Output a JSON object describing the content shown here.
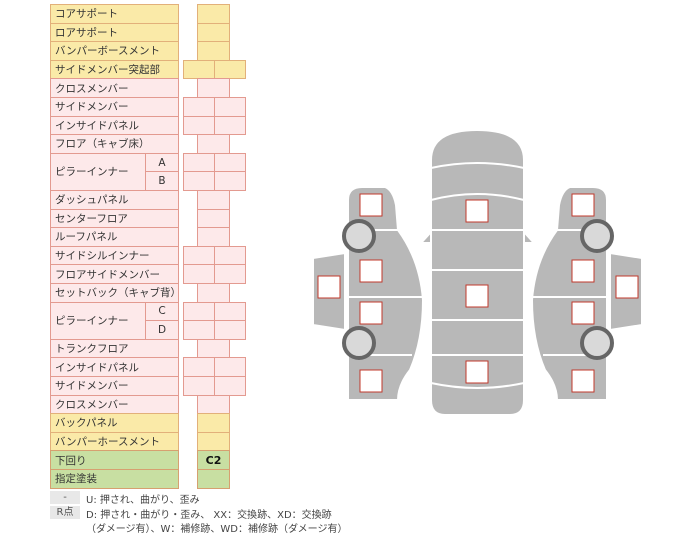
{
  "table": {
    "rows": [
      {
        "label": "コアサポート",
        "color": "yellow",
        "cells": 1
      },
      {
        "label": "ロアサポート",
        "color": "yellow",
        "cells": 1
      },
      {
        "label": "バンパーボースメント",
        "color": "yellow",
        "cells": 1
      },
      {
        "label": "サイドメンバー突起部",
        "color": "yellow",
        "cells": 2
      },
      {
        "label": "クロスメンバー",
        "color": "pink",
        "cells": 1
      },
      {
        "label": "サイドメンバー",
        "color": "pink",
        "cells": 2
      },
      {
        "label": "インサイドパネル",
        "color": "pink",
        "cells": 2
      },
      {
        "label": "フロア（キャブ床）",
        "color": "pink",
        "cells": 1
      },
      {
        "label": "ピラーインナー",
        "sub": "A",
        "color": "pink",
        "cells": 2
      },
      {
        "label": "",
        "sub": "B",
        "color": "pink",
        "cells": 2
      },
      {
        "label": "ダッシュパネル",
        "color": "pink",
        "cells": 1
      },
      {
        "label": "センターフロア",
        "color": "pink",
        "cells": 1
      },
      {
        "label": "ルーフパネル",
        "color": "pink",
        "cells": 1
      },
      {
        "label": "サイドシルインナー",
        "color": "pink",
        "cells": 2
      },
      {
        "label": "フロアサイドメンバー",
        "color": "pink",
        "cells": 2
      },
      {
        "label": "セットバック（キャブ背）",
        "color": "pink",
        "cells": 1
      },
      {
        "label": "ピラーインナー",
        "sub": "C",
        "color": "pink",
        "cells": 2
      },
      {
        "label": "",
        "sub": "D",
        "color": "pink",
        "cells": 2
      },
      {
        "label": "トランクフロア",
        "color": "pink",
        "cells": 1
      },
      {
        "label": "インサイドパネル",
        "color": "pink",
        "cells": 2
      },
      {
        "label": "サイドメンバー",
        "color": "pink",
        "cells": 2
      },
      {
        "label": "クロスメンバー",
        "color": "pink",
        "cells": 1
      },
      {
        "label": "バックパネル",
        "color": "yellow",
        "cells": 1
      },
      {
        "label": "バンパーホースメント",
        "color": "yellow",
        "cells": 1
      },
      {
        "label": "下回り",
        "color": "green",
        "cells": 1,
        "value": "C2"
      },
      {
        "label": "指定塗装",
        "color": "green",
        "cells": 1
      }
    ]
  },
  "legend": {
    "rows": [
      {
        "key": "-",
        "text": "U: 押され、曲がり、歪み"
      },
      {
        "key": "R点",
        "text": "D: 押され・曲がり・歪み、 XX：交換跡、XD：交換跡"
      },
      {
        "key": "",
        "text": "（ダメージ有）、W：補修跡、WD：補修跡（ダメージ有）"
      }
    ]
  },
  "colors": {
    "yellow": "#faeaa8",
    "pink": "#fde9ea",
    "green": "#c8dfa2",
    "body": "#b7b7b7",
    "marker": "#c0392b"
  }
}
